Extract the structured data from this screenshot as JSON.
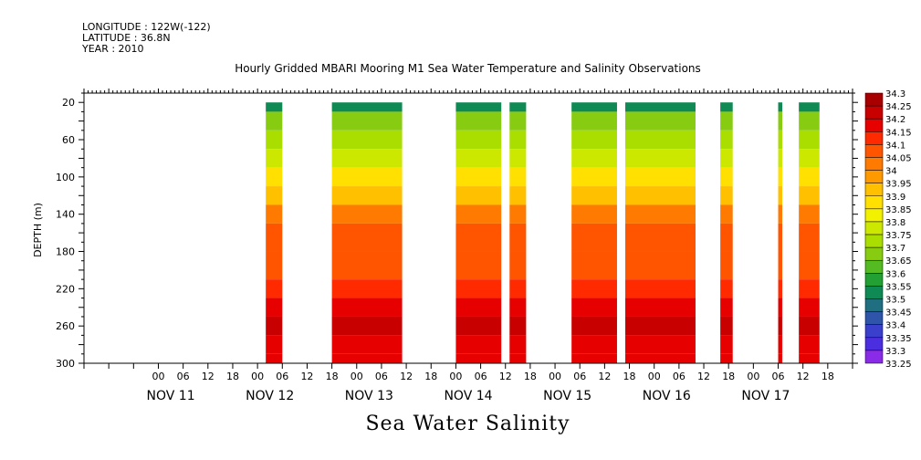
{
  "header": {
    "longitude": "LONGITUDE : 122W(-122)",
    "latitude": "LATITUDE : 36.8N",
    "year": "YEAR : 2010"
  },
  "chart_data": {
    "type": "heatmap",
    "title": "Hourly Gridded MBARI Mooring M1 Sea Water Temperature and Salinity Observations",
    "footer_label": "Sea Water Salinity",
    "ylabel": "DEPTH (m)",
    "ylim": [
      300,
      10
    ],
    "y_ticks": [
      20,
      60,
      100,
      140,
      180,
      220,
      260,
      300
    ],
    "x_day_labels": [
      "NOV 11",
      "NOV 12",
      "NOV 13",
      "NOV 14",
      "NOV 15",
      "NOV 16",
      "NOV 17"
    ],
    "x_hour_labels": [
      "00",
      "06",
      "12",
      "18",
      "00",
      "06",
      "12",
      "18",
      "00",
      "06",
      "12",
      "18",
      "00",
      "06",
      "12",
      "18",
      "00",
      "06",
      "12",
      "18",
      "00",
      "06",
      "12",
      "18",
      "00",
      "06",
      "12",
      "18"
    ],
    "x_range_hours": [
      -18,
      168
    ],
    "colorbar": {
      "levels": [
        34.3,
        34.25,
        34.2,
        34.15,
        34.1,
        34.05,
        34,
        33.95,
        33.9,
        33.85,
        33.8,
        33.75,
        33.7,
        33.65,
        33.6,
        33.55,
        33.5,
        33.45,
        33.4,
        33.35,
        33.3,
        33.25
      ],
      "colors": [
        "#a80000",
        "#c80000",
        "#e60000",
        "#ff2a00",
        "#ff5500",
        "#ff7a00",
        "#ff9900",
        "#ffc000",
        "#ffe000",
        "#f2f200",
        "#cce800",
        "#aadd00",
        "#88cc11",
        "#55bb22",
        "#22a033",
        "#108a55",
        "#1f6f80",
        "#2e55aa",
        "#3a3fcc",
        "#4b2ee0",
        "#8a2be8",
        "#cc00ee"
      ]
    },
    "segments": [
      {
        "start_hour": 26,
        "end_hour": 30
      },
      {
        "start_hour": 42,
        "end_hour": 59
      },
      {
        "start_hour": 72,
        "end_hour": 83
      },
      {
        "start_hour": 85,
        "end_hour": 89
      },
      {
        "start_hour": 100,
        "end_hour": 111
      },
      {
        "start_hour": 113,
        "end_hour": 130
      },
      {
        "start_hour": 136,
        "end_hour": 139
      },
      {
        "start_hour": 150,
        "end_hour": 151
      },
      {
        "start_hour": 155,
        "end_hour": 160
      }
    ],
    "profile": [
      {
        "depth": 20,
        "value": 33.55
      },
      {
        "depth": 40,
        "value": 33.7
      },
      {
        "depth": 60,
        "value": 33.75
      },
      {
        "depth": 80,
        "value": 33.8
      },
      {
        "depth": 100,
        "value": 33.9
      },
      {
        "depth": 120,
        "value": 33.95
      },
      {
        "depth": 140,
        "value": 34.05
      },
      {
        "depth": 160,
        "value": 34.1
      },
      {
        "depth": 200,
        "value": 34.1
      },
      {
        "depth": 220,
        "value": 34.15
      },
      {
        "depth": 240,
        "value": 34.2
      },
      {
        "depth": 260,
        "value": 34.25
      },
      {
        "depth": 280,
        "value": 34.2
      },
      {
        "depth": 300,
        "value": 34.2
      }
    ],
    "grid": false
  }
}
